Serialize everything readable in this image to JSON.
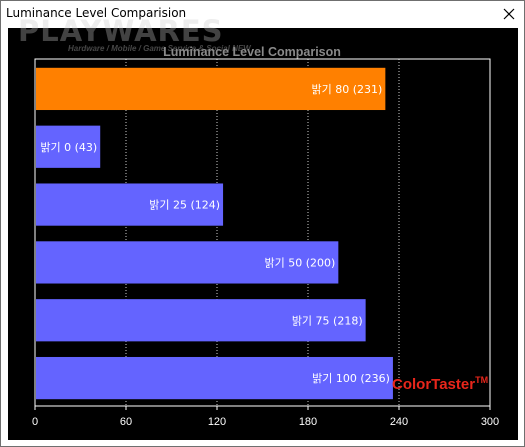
{
  "window": {
    "title": "Luminance Level Comparision"
  },
  "watermark": {
    "logo": "PLAYWARES",
    "tagline": "Hardware / Mobile / Game Service & Social NEW"
  },
  "brand": {
    "text": "ColorTaster",
    "mark": "TM"
  },
  "colors": {
    "background": "#000000",
    "highlight_bar": "#ff8000",
    "bar": "#6464ff",
    "grid": "#ffffff",
    "brand": "#e8261b"
  },
  "chart_data": {
    "type": "bar",
    "orientation": "horizontal",
    "title": "Luminance Level Comparison",
    "categories": [
      "밝기 80",
      "밝기 0",
      "밝기 25",
      "밝기 50",
      "밝기 75",
      "밝기 100"
    ],
    "values": [
      231,
      43,
      124,
      200,
      218,
      236
    ],
    "labels": [
      "밝기 80 (231)",
      "밝기 0 (43)",
      "밝기 25 (124)",
      "밝기 50 (200)",
      "밝기 75 (218)",
      "밝기 100 (236)"
    ],
    "highlight_index": 0,
    "xlim": [
      0,
      300
    ],
    "xticks": [
      0,
      60,
      120,
      180,
      240,
      300
    ],
    "xlabel": "",
    "ylabel": "",
    "grid": true
  }
}
